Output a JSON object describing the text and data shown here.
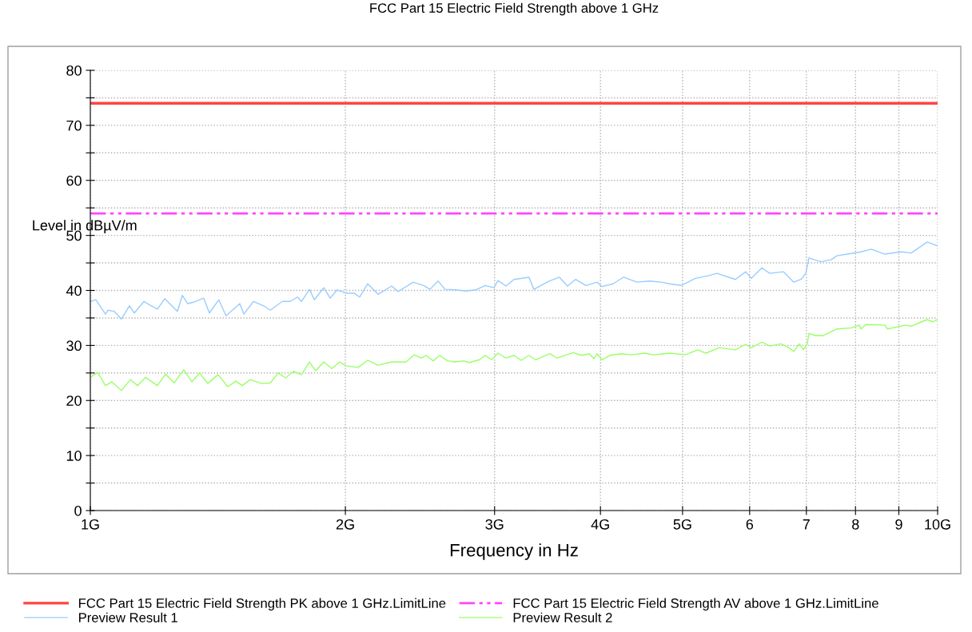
{
  "chart_data": {
    "type": "line",
    "title": "FCC Part 15 Electric Field Strength above 1 GHz",
    "xlabel": "Frequency in Hz",
    "ylabel": "Level in dBµV/m",
    "log": "x",
    "grid": true,
    "legend": "bottom",
    "xlim": [
      1,
      10
    ],
    "ylim": [
      0,
      80
    ],
    "xticks": [
      {
        "value": 1,
        "label": "1G"
      },
      {
        "value": 2,
        "label": "2G"
      },
      {
        "value": 3,
        "label": "3G"
      },
      {
        "value": 4,
        "label": "4G"
      },
      {
        "value": 5,
        "label": "5G"
      },
      {
        "value": 6,
        "label": "6"
      },
      {
        "value": 7,
        "label": "7"
      },
      {
        "value": 8,
        "label": "8"
      },
      {
        "value": 9,
        "label": "9"
      },
      {
        "value": 10,
        "label": "10G"
      }
    ],
    "yticks": [
      0,
      {
        "value": 5,
        "label": null
      },
      10,
      {
        "value": 15,
        "label": null
      },
      20,
      {
        "value": 25,
        "label": null
      },
      30,
      {
        "value": 35,
        "label": null
      },
      40,
      {
        "value": 45,
        "label": null
      },
      50,
      {
        "value": 55,
        "label": null
      },
      60,
      {
        "value": 65,
        "label": null
      },
      70,
      {
        "value": 75,
        "label": null
      },
      80
    ],
    "series": [
      {
        "name": "FCC Part 15 Electric Field Strength PK above 1 GHz.LimitLine",
        "color": "#ff4444",
        "line_style": "solid",
        "x": [
          1,
          10
        ],
        "values": [
          74,
          74
        ]
      },
      {
        "name": "FCC Part 15 Electric Field Strength AV above 1 GHz.LimitLine",
        "color": "#ff44ff",
        "line_style": "dashed",
        "x": [
          1,
          10
        ],
        "values": [
          54,
          54
        ]
      },
      {
        "name": "Preview Result 1",
        "color": "#99ccff",
        "line_style": "solid",
        "x": [
          1.0,
          1.015,
          1.042,
          1.049,
          1.067,
          1.088,
          1.112,
          1.127,
          1.157,
          1.177,
          1.2,
          1.224,
          1.267,
          1.284,
          1.303,
          1.326,
          1.361,
          1.382,
          1.418,
          1.446,
          1.501,
          1.518,
          1.558,
          1.602,
          1.631,
          1.685,
          1.722,
          1.756,
          1.775,
          1.814,
          1.838,
          1.886,
          1.919,
          1.956,
          2.004,
          2.048,
          2.079,
          2.125,
          2.186,
          2.268,
          2.308,
          2.405,
          2.474,
          2.517,
          2.572,
          2.623,
          2.698,
          2.776,
          2.849,
          2.924,
          2.995,
          3.028,
          3.094,
          3.162,
          3.294,
          3.338,
          3.479,
          3.579,
          3.657,
          3.738,
          3.846,
          3.964,
          4.016,
          4.14,
          4.258,
          4.419,
          4.575,
          4.716,
          4.831,
          4.98,
          5.178,
          5.373,
          5.491,
          5.771,
          5.937,
          6.028,
          6.202,
          6.337,
          6.576,
          6.764,
          6.898,
          6.988,
          7.049,
          7.283,
          7.491,
          7.606,
          7.825,
          8.12,
          8.35,
          8.666,
          9.05,
          9.309,
          9.721,
          10.0
        ],
        "values": [
          38.0,
          38.3,
          35.7,
          36.4,
          36.2,
          34.8,
          37.2,
          35.9,
          38.0,
          37.3,
          36.6,
          38.5,
          36.2,
          39.1,
          37.6,
          37.9,
          38.6,
          35.9,
          38.3,
          35.4,
          37.6,
          35.7,
          38.0,
          37.2,
          36.4,
          38.0,
          38.0,
          38.8,
          38.0,
          40.2,
          38.3,
          40.5,
          38.6,
          40.1,
          39.5,
          39.5,
          38.8,
          41.2,
          39.3,
          40.8,
          39.8,
          41.5,
          40.9,
          40.2,
          41.7,
          40.2,
          40.1,
          39.9,
          40.1,
          40.9,
          40.5,
          41.8,
          40.8,
          42.0,
          42.4,
          40.2,
          41.7,
          42.4,
          40.8,
          42.0,
          40.9,
          41.5,
          40.7,
          41.2,
          42.4,
          41.5,
          41.7,
          41.5,
          41.2,
          40.9,
          42.2,
          42.7,
          43.1,
          42.0,
          43.4,
          42.2,
          44.1,
          43.1,
          43.4,
          41.5,
          42.0,
          43.1,
          45.9,
          45.2,
          45.6,
          46.3,
          46.6,
          47.0,
          47.5,
          46.6,
          47.0,
          46.8,
          48.8,
          48.1
        ]
      },
      {
        "name": "Preview Result 2",
        "color": "#99ff66",
        "line_style": "solid",
        "x": [
          1.0,
          1.02,
          1.042,
          1.06,
          1.088,
          1.115,
          1.137,
          1.162,
          1.2,
          1.227,
          1.256,
          1.289,
          1.318,
          1.346,
          1.376,
          1.415,
          1.453,
          1.485,
          1.511,
          1.544,
          1.592,
          1.631,
          1.666,
          1.7,
          1.737,
          1.775,
          1.814,
          1.845,
          1.886,
          1.927,
          1.969,
          2.004,
          2.07,
          2.125,
          2.186,
          2.268,
          2.283,
          2.359,
          2.411,
          2.458,
          2.49,
          2.539,
          2.584,
          2.64,
          2.698,
          2.758,
          2.8,
          2.88,
          2.924,
          2.976,
          3.028,
          3.094,
          3.162,
          3.225,
          3.294,
          3.353,
          3.487,
          3.555,
          3.714,
          3.804,
          3.879,
          3.93,
          3.964,
          4.016,
          4.104,
          4.231,
          4.352,
          4.516,
          4.615,
          4.746,
          4.841,
          5.034,
          5.212,
          5.326,
          5.527,
          5.771,
          5.937,
          6.028,
          6.202,
          6.337,
          6.533,
          6.676,
          6.764,
          6.868,
          6.943,
          7.018,
          7.049,
          7.173,
          7.331,
          7.606,
          7.911,
          8.084,
          8.12,
          8.226,
          8.666,
          8.722,
          9.169,
          9.309,
          9.575,
          9.721,
          9.87,
          10.0
        ],
        "values": [
          24.2,
          25.1,
          22.7,
          23.4,
          21.8,
          23.8,
          22.7,
          24.2,
          22.7,
          24.8,
          23.2,
          25.6,
          23.4,
          25.0,
          23.1,
          24.7,
          22.5,
          23.5,
          22.7,
          23.8,
          23.1,
          23.2,
          25.0,
          24.1,
          25.3,
          24.7,
          27.0,
          25.4,
          27.0,
          25.8,
          27.0,
          26.3,
          26.0,
          27.3,
          26.4,
          27.0,
          27.0,
          27.0,
          28.3,
          27.7,
          28.2,
          27.2,
          28.2,
          27.2,
          27.0,
          27.2,
          26.9,
          27.4,
          28.2,
          27.4,
          28.6,
          27.7,
          28.2,
          27.3,
          28.2,
          27.4,
          28.5,
          27.7,
          28.7,
          28.2,
          28.5,
          27.6,
          28.5,
          27.4,
          28.2,
          28.5,
          28.3,
          28.6,
          28.3,
          28.5,
          28.6,
          28.3,
          29.2,
          28.6,
          29.6,
          29.2,
          30.2,
          29.6,
          30.6,
          29.9,
          30.3,
          29.6,
          28.9,
          30.3,
          29.2,
          30.3,
          32.2,
          31.8,
          31.8,
          33.0,
          33.2,
          33.7,
          33.0,
          33.8,
          33.7,
          33.0,
          33.7,
          33.5,
          34.3,
          34.7,
          34.3,
          34.7
        ]
      }
    ]
  }
}
